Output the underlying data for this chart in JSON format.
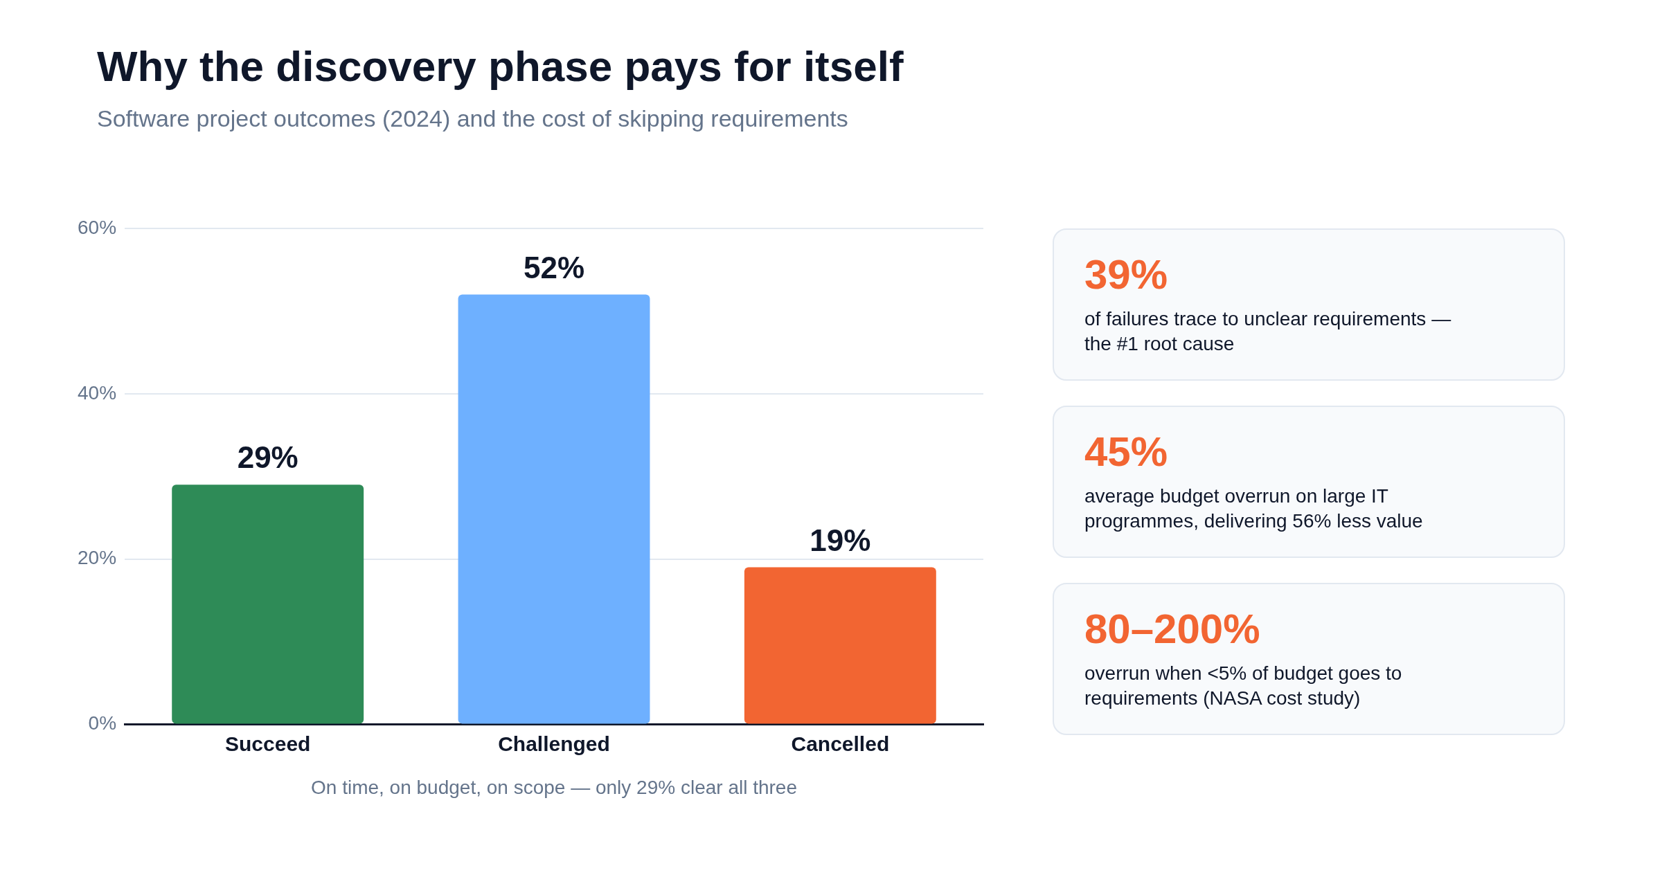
{
  "chart_data": [
    {
      "type": "bar",
      "title": "Why the discovery phase pays for itself",
      "subtitle": "Software project outcomes (2024) and the cost of skipping requirements",
      "xlabel": "On time, on budget, on scope — only 29% clear all three",
      "categories": [
        "Succeed",
        "Challenged",
        "Cancelled"
      ],
      "values": [
        29,
        52,
        19
      ],
      "colors": [
        "#2e8b57",
        "#6eb0ff",
        "#f26532"
      ],
      "value_labels": [
        "29%",
        "52%",
        "19%"
      ],
      "ylim": [
        0,
        60
      ],
      "yticks": [
        {
          "value": 0,
          "label": "0%"
        },
        {
          "value": 20,
          "label": "20%"
        },
        {
          "value": 40,
          "label": "40%"
        },
        {
          "value": 60,
          "label": "60%"
        }
      ],
      "grid": "y",
      "legend": false
    },
    {
      "type": "other",
      "annotations": [
        "39%",
        "of failures trace to unclear requirements — the #1 root cause",
        "45%",
        "average budget overrun on large IT programmes, delivering 56% less value",
        "80–200%",
        "overrun when <5% of budget goes to requirements (NASA cost study)"
      ]
    }
  ]
}
